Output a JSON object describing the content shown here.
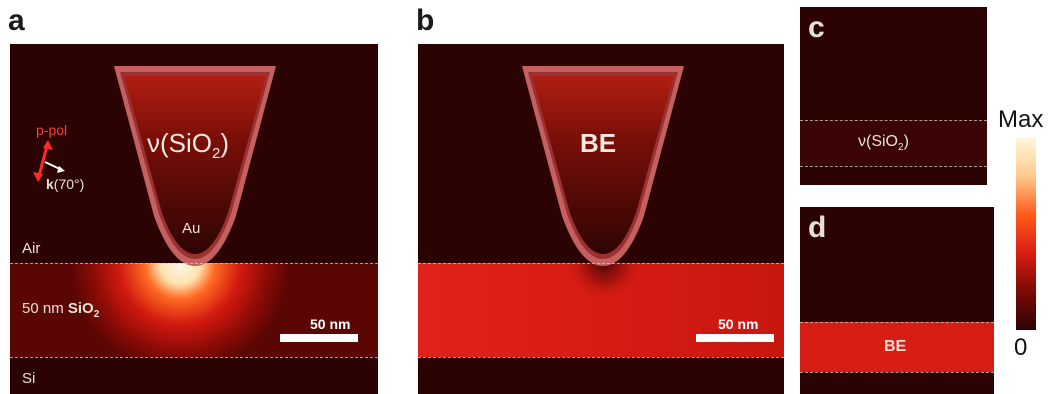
{
  "panels": {
    "a": {
      "letter": "a",
      "tip_label_main": "ν(SiO",
      "tip_label_sub": "2",
      "tip_label_end": ")",
      "tip_material": "Au",
      "pol_label": "p-pol",
      "k_label_bold": "k",
      "k_label_rest": "(70°)",
      "layer_air": "Air",
      "layer_oxide_prefix": "50 nm ",
      "layer_oxide_bold": "SiO",
      "layer_oxide_sub": "2",
      "layer_si": "Si",
      "scalebar": "50 nm"
    },
    "b": {
      "letter": "b",
      "tip_label": "BE",
      "scalebar": "50 nm"
    },
    "c": {
      "letter": "c",
      "layer_label_main": "ν(SiO",
      "layer_label_sub": "2",
      "layer_label_end": ")"
    },
    "d": {
      "letter": "d",
      "layer_label": "BE"
    }
  },
  "colorbar": {
    "max_label": "Max",
    "min_label": "0",
    "colors": [
      "#2b0303",
      "#7a0a05",
      "#d81e12",
      "#ff5a1a",
      "#ffc98a",
      "#fff6dc"
    ]
  }
}
